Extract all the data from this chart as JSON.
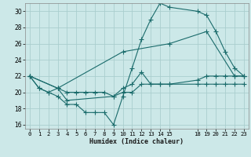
{
  "xlabel": "Humidex (Indice chaleur)",
  "bg_color": "#cce8e8",
  "grid_color": "#aacece",
  "line_color": "#1a6b6b",
  "xlim": [
    -0.5,
    23.5
  ],
  "ylim": [
    15.5,
    31.0
  ],
  "xticks": [
    0,
    1,
    2,
    3,
    4,
    5,
    6,
    7,
    8,
    9,
    10,
    11,
    12,
    13,
    14,
    15,
    18,
    19,
    20,
    21,
    22,
    23
  ],
  "yticks": [
    16,
    18,
    20,
    22,
    24,
    26,
    28,
    30
  ],
  "lines": [
    {
      "x": [
        0,
        1,
        2,
        3,
        4,
        5,
        6,
        7,
        8,
        9,
        10,
        11,
        12,
        13,
        14,
        15,
        18,
        19,
        20,
        21,
        22,
        23
      ],
      "y": [
        22,
        20.5,
        20,
        20.5,
        20,
        20,
        20,
        20,
        20,
        19.5,
        20.5,
        21,
        22.5,
        21,
        21,
        21,
        21.5,
        22,
        22,
        22,
        22,
        22
      ]
    },
    {
      "x": [
        0,
        1,
        2,
        3,
        4,
        5,
        6,
        7,
        8,
        9,
        10,
        11,
        12,
        13,
        14,
        15,
        18,
        19,
        20,
        21,
        22,
        23
      ],
      "y": [
        22,
        20.5,
        20,
        19.5,
        18.5,
        18.5,
        17.5,
        17.5,
        17.5,
        16,
        19.5,
        23,
        26.5,
        29,
        31,
        30.5,
        30,
        29.5,
        27.5,
        25,
        23,
        22
      ]
    },
    {
      "x": [
        0,
        3,
        10,
        15,
        19,
        22,
        23
      ],
      "y": [
        22,
        20.5,
        25,
        26,
        27.5,
        22,
        22
      ]
    },
    {
      "x": [
        0,
        3,
        4,
        9,
        10,
        11,
        12,
        13,
        14,
        15,
        18,
        19,
        20,
        21,
        22,
        23
      ],
      "y": [
        22,
        20.5,
        19,
        19.5,
        20,
        20,
        21,
        21,
        21,
        21,
        21,
        21,
        21,
        21,
        21,
        21
      ]
    }
  ]
}
